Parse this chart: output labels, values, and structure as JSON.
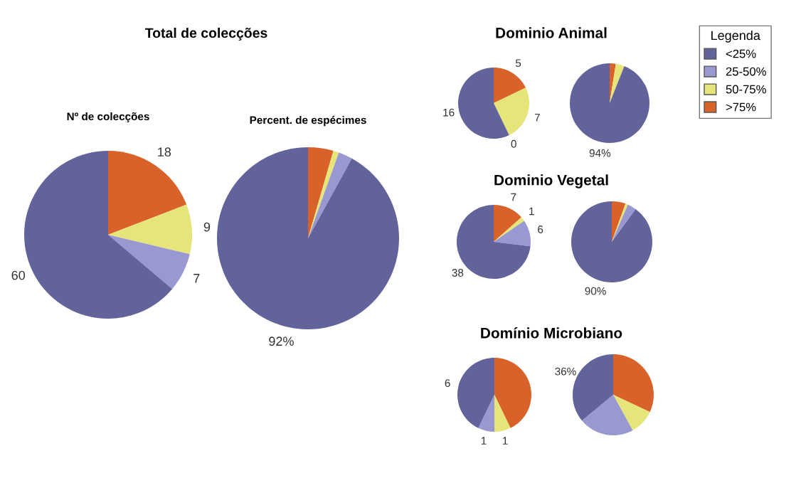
{
  "chart_data": [
    {
      "type": "pie",
      "title": "Total de colecções",
      "subtitle": "Nº de colecções",
      "categories": [
        ">75%",
        "50-75%",
        "25-50%",
        "<25%"
      ],
      "values": [
        18,
        9,
        7,
        60
      ],
      "colors": [
        "#d9622b",
        "#e6e57a",
        "#9a98d0",
        "#62639b"
      ],
      "data_labels": true,
      "legend": "top right",
      "legend_title": "Legenda"
    },
    {
      "type": "pie",
      "subtitle": "Percent. de espécimes",
      "values": [
        4.5,
        1,
        2.5,
        92
      ],
      "colors": [
        "#d9622b",
        "#e6e57a",
        "#9a98d0",
        "#62639b"
      ],
      "value_labels": [
        null,
        null,
        null,
        "92%"
      ]
    },
    {
      "type": "pie",
      "title": "Dominio Animal",
      "values": [
        5,
        7,
        0,
        16
      ],
      "colors": [
        "#d9622b",
        "#e6e57a",
        "#9a98d0",
        "#62639b"
      ],
      "value_labels": [
        "5",
        "7",
        "0",
        "16"
      ]
    },
    {
      "type": "pie",
      "values": [
        2.5,
        3.5,
        0,
        94
      ],
      "colors": [
        "#d9622b",
        "#e6e57a",
        "#9a98d0",
        "#62639b"
      ],
      "value_labels": [
        null,
        null,
        null,
        "94%"
      ]
    },
    {
      "type": "pie",
      "title": "Dominio Vegetal",
      "values": [
        7,
        1,
        6,
        38
      ],
      "colors": [
        "#d9622b",
        "#e6e57a",
        "#9a98d0",
        "#62639b"
      ],
      "data_labels": true
    },
    {
      "type": "pie",
      "values": [
        5.5,
        1,
        3.5,
        90
      ],
      "colors": [
        "#d9622b",
        "#e6e57a",
        "#9a98d0",
        "#62639b"
      ],
      "value_labels": [
        null,
        null,
        null,
        "90%"
      ]
    },
    {
      "type": "pie",
      "title": "Domínio Microbiano",
      "values": [
        6,
        1,
        1,
        6
      ],
      "colors": [
        "#d9622b",
        "#e6e57a",
        "#9a98d0",
        "#62639b"
      ],
      "value_labels": [
        null,
        "1",
        "1",
        "6"
      ]
    },
    {
      "type": "pie",
      "values": [
        32,
        10,
        22,
        36
      ],
      "colors": [
        "#d9622b",
        "#e6e57a",
        "#9a98d0",
        "#62639b"
      ],
      "value_labels": [
        null,
        null,
        null,
        "36%"
      ]
    }
  ]
}
